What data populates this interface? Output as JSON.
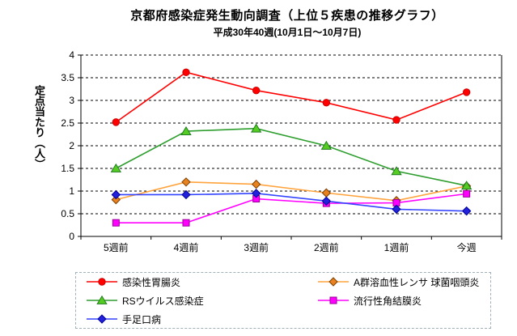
{
  "header": {
    "title": "京都府感染症発生動向調査（上位５疾患の推移グラフ）",
    "subtitle": "平成30年40週(10月1日～10月7日)"
  },
  "chart_data": {
    "type": "line",
    "title": "京都府感染症発生動向調査（上位５疾患の推移グラフ）",
    "subtitle": "平成30年40週(10月1日～10月7日)",
    "ylabel": "定点当たり（人）",
    "xlabel": "",
    "ylim": [
      0,
      4
    ],
    "ytick_step": 0.5,
    "ytick_labels": [
      "0",
      "0.5",
      "1",
      "1.5",
      "2",
      "2.5",
      "3",
      "3.5",
      "4"
    ],
    "grid": true,
    "gridline_style": "black-dashed-horizontal",
    "legend_position": "bottom",
    "categories": [
      "5週前",
      "4週前",
      "3週前",
      "2週前",
      "1週前",
      "今週"
    ],
    "series": [
      {
        "name": "感染性胃腸炎",
        "marker": "circle",
        "line_color": "#FF0000",
        "marker_fill": "#FF0000",
        "marker_stroke": "#CC0000",
        "values": [
          2.52,
          3.62,
          3.22,
          2.95,
          2.57,
          3.18
        ]
      },
      {
        "name": "A群溶血性レンサ 球菌咽頭炎",
        "marker": "diamond",
        "line_color": "#FFA33C",
        "marker_fill": "#E8821E",
        "marker_stroke": "#7B3F00",
        "values": [
          0.81,
          1.2,
          1.15,
          0.96,
          0.79,
          1.11
        ]
      },
      {
        "name": "RSウイルス感染症",
        "marker": "triangle",
        "line_color": "#2E9E2E",
        "marker_fill": "#55CC22",
        "marker_stroke": "#1F7A1F",
        "values": [
          1.5,
          2.32,
          2.38,
          2.0,
          1.44,
          1.12
        ]
      },
      {
        "name": "流行性角結膜炎",
        "marker": "square",
        "line_color": "#FF00FF",
        "marker_fill": "#FF00FF",
        "marker_stroke": "#990099",
        "values": [
          0.3,
          0.3,
          0.83,
          0.73,
          0.74,
          0.94
        ]
      },
      {
        "name": "手足口病",
        "marker": "diamond",
        "line_color": "#3344FF",
        "marker_fill": "#2222DD",
        "marker_stroke": "#000099",
        "values": [
          0.92,
          0.92,
          0.95,
          0.78,
          0.6,
          0.56
        ]
      }
    ]
  }
}
